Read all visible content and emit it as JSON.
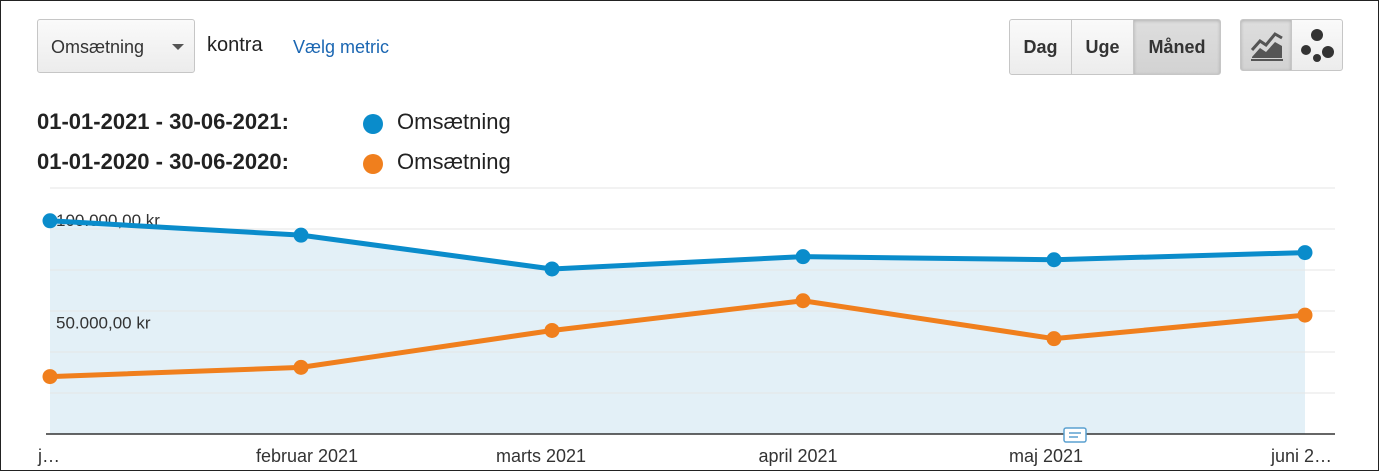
{
  "toolbar": {
    "metric_select_label": "Omsætning",
    "kontra_label": "kontra",
    "choose_metric_link": "Vælg metric",
    "granularity": {
      "day": "Dag",
      "week": "Uge",
      "month": "Måned",
      "selected": "Måned"
    }
  },
  "legend": [
    {
      "range": "01-01-2021 - 30-06-2021:",
      "name": "Omsætning",
      "color": "#0a8ccb"
    },
    {
      "range": "01-01-2020 - 30-06-2020:",
      "name": "Omsætning",
      "color": "#f07f1d"
    }
  ],
  "colors": {
    "area_fill": "#e3f0f7",
    "grid": "#e6e6e6",
    "axis": "#333333"
  },
  "icons": {
    "line_view": "line-chart-icon",
    "scatter_view": "motion-chart-icon",
    "annotation": "annotation-icon"
  },
  "chart_data": {
    "type": "line",
    "categories": [
      "j…",
      "februar 2021",
      "marts 2021",
      "april 2021",
      "maj 2021",
      "juni 2…"
    ],
    "y_tick_labels": [
      {
        "value": 100000,
        "label": "100.000,00 kr"
      },
      {
        "value": 50000,
        "label": "50.000,00 kr"
      }
    ],
    "ylim": [
      0,
      120000
    ],
    "grid": true,
    "series": [
      {
        "name": "Omsætning",
        "period": "01-01-2021 - 30-06-2021",
        "values": [
          104000,
          97000,
          80500,
          86500,
          85000,
          88500
        ],
        "area": true
      },
      {
        "name": "Omsætning",
        "period": "01-01-2020 - 30-06-2020",
        "values": [
          28000,
          32500,
          50500,
          65000,
          46500,
          58000
        ],
        "area": false
      }
    ]
  }
}
